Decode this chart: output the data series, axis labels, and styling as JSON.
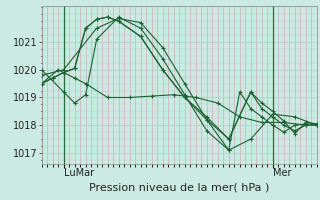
{
  "bg_color": "#cceae4",
  "grid_color_major": "#aad4cc",
  "grid_color_minor": "#c0dfd9",
  "line_color": "#1a6030",
  "vline_color": "#2d6a3a",
  "xlabel": "Pression niveau de la mer( hPa )",
  "yticks": [
    1017,
    1018,
    1019,
    1020,
    1021
  ],
  "ytop": 1022.3,
  "ybottom": 1016.6,
  "xmin": 0,
  "xmax": 50,
  "xlabel_fontsize": 8,
  "tick_fontsize": 7,
  "day_ticks": [
    [
      4,
      "LuMar"
    ],
    [
      42,
      "Mer"
    ]
  ],
  "series": [
    [
      0,
      1019.5,
      3,
      1020.0,
      6,
      1019.7,
      8,
      1019.5,
      12,
      1019.0,
      16,
      1019.0,
      20,
      1019.05,
      24,
      1019.1,
      28,
      1019.0,
      32,
      1018.8,
      36,
      1018.3,
      40,
      1018.1,
      44,
      1018.1,
      48,
      1018.0
    ],
    [
      0,
      1019.8,
      4,
      1020.0,
      10,
      1021.5,
      14,
      1021.85,
      18,
      1021.7,
      22,
      1020.8,
      26,
      1019.5,
      30,
      1018.2,
      34,
      1017.1,
      38,
      1017.5,
      42,
      1018.4,
      46,
      1018.3,
      50,
      1018.0
    ],
    [
      0,
      1020.0,
      4,
      1019.2,
      6,
      1018.8,
      8,
      1019.1,
      10,
      1021.1,
      14,
      1021.9,
      18,
      1021.5,
      22,
      1020.4,
      26,
      1019.1,
      30,
      1017.8,
      34,
      1017.1,
      36,
      1019.2,
      38,
      1018.6,
      40,
      1018.3,
      42,
      1018.0,
      44,
      1017.75,
      46,
      1018.0,
      48,
      1018.05,
      50,
      1018.0
    ],
    [
      0,
      1019.5,
      2,
      1019.7,
      4,
      1019.9,
      6,
      1020.05,
      8,
      1021.5,
      10,
      1021.82,
      12,
      1021.9,
      14,
      1021.75,
      18,
      1021.2,
      22,
      1020.0,
      26,
      1019.0,
      30,
      1018.2,
      34,
      1017.5,
      38,
      1019.2,
      40,
      1018.8,
      42,
      1018.5,
      44,
      1018.15,
      46,
      1017.7,
      48,
      1018.1,
      50,
      1018.05
    ],
    [
      0,
      1019.5,
      2,
      1019.7,
      4,
      1019.9,
      6,
      1020.05,
      8,
      1021.5,
      10,
      1021.82,
      12,
      1021.9,
      14,
      1021.75,
      18,
      1021.2,
      22,
      1020.0,
      26,
      1019.0,
      30,
      1018.3,
      34,
      1017.5,
      38,
      1019.2,
      40,
      1018.6,
      42,
      1018.3,
      44,
      1018.0,
      46,
      1017.8,
      48,
      1018.0,
      50,
      1018.0
    ]
  ]
}
